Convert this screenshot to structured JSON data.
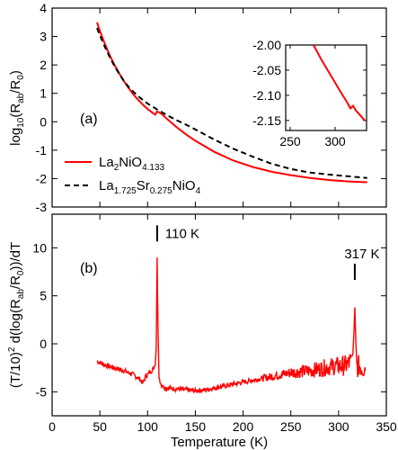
{
  "chart_data": [
    {
      "type": "line",
      "panel_label": "(a)",
      "ylabel": "log10(Rab/R0)",
      "ylim": [
        -3,
        4
      ],
      "yticks": [
        -3,
        -2,
        -1,
        0,
        1,
        2,
        3,
        4
      ],
      "xlim": [
        0,
        350
      ],
      "series": [
        {
          "name": "La2NiO4.133",
          "color": "#ff0000",
          "style": "solid",
          "x": [
            47,
            50,
            55,
            60,
            65,
            70,
            75,
            80,
            85,
            90,
            95,
            100,
            105,
            108,
            110,
            112,
            115,
            120,
            130,
            140,
            150,
            170,
            190,
            210,
            230,
            250,
            270,
            290,
            310,
            330
          ],
          "y": [
            3.5,
            3.2,
            2.76,
            2.36,
            2.02,
            1.72,
            1.44,
            1.19,
            0.97,
            0.77,
            0.6,
            0.45,
            0.32,
            0.25,
            0.36,
            0.33,
            0.27,
            0.11,
            -0.18,
            -0.44,
            -0.67,
            -1.06,
            -1.37,
            -1.59,
            -1.76,
            -1.88,
            -1.98,
            -2.05,
            -2.1,
            -2.13
          ]
        },
        {
          "name": "La1.725Sr0.275NiO4",
          "color": "#000000",
          "style": "dashed",
          "x": [
            47,
            50,
            55,
            60,
            65,
            70,
            75,
            80,
            85,
            90,
            100,
            110,
            120,
            130,
            140,
            150,
            170,
            190,
            210,
            230,
            250,
            270,
            290,
            310,
            330
          ],
          "y": [
            3.3,
            3.05,
            2.65,
            2.3,
            1.98,
            1.7,
            1.45,
            1.23,
            1.06,
            0.9,
            0.64,
            0.43,
            0.24,
            0.06,
            -0.1,
            -0.27,
            -0.63,
            -0.95,
            -1.23,
            -1.48,
            -1.66,
            -1.79,
            -1.86,
            -1.92,
            -1.98
          ]
        }
      ],
      "legend": {
        "placement": "bottom-left",
        "entries": [
          {
            "base": "La",
            "sub1": "2",
            "mid": "NiO",
            "sub2": "4.133",
            "end": ""
          },
          {
            "base": "La",
            "sub1": "1.725",
            "mid": "Sr",
            "sub2": "0.275",
            "end": "NiO",
            "sub3": "4"
          }
        ]
      },
      "inset": {
        "xlim": [
          245,
          335
        ],
        "ylim": [
          -2.17,
          -2.0
        ],
        "xticks": [
          250,
          300
        ],
        "yticks": [
          -2.0,
          -2.05,
          -2.1,
          -2.15
        ],
        "ytick_labels": [
          "-2.00",
          "-2.05",
          "-2.10",
          "-2.15"
        ],
        "series": {
          "color": "#ff0000",
          "x": [
            276,
            285,
            295,
            305,
            313,
            317,
            320,
            323,
            328,
            333
          ],
          "y": [
            -2.0,
            -2.03,
            -2.06,
            -2.09,
            -2.113,
            -2.126,
            -2.121,
            -2.13,
            -2.14,
            -2.15
          ]
        }
      }
    },
    {
      "type": "line",
      "panel_label": "(b)",
      "xlabel": "Temperature (K)",
      "ylabel": "(T/10)2 d(log(Rab/R0))/dT",
      "xlim": [
        0,
        350
      ],
      "xticks": [
        0,
        50,
        100,
        150,
        200,
        250,
        300,
        350
      ],
      "ylim": [
        -7.5,
        13.5
      ],
      "yticks": [
        -5,
        0,
        5,
        10
      ],
      "series": [
        {
          "name": "",
          "color": "#ff0000",
          "x": [
            47,
            55,
            65,
            75,
            85,
            92,
            95,
            98,
            101,
            104,
            106,
            108,
            109,
            110,
            111,
            112,
            114,
            117,
            120,
            130,
            140,
            150,
            160,
            170,
            180,
            190,
            200,
            210,
            220,
            230,
            240,
            250,
            260,
            270,
            280,
            290,
            300,
            306,
            310,
            313,
            315,
            316,
            317,
            318,
            319,
            320,
            322,
            325,
            328
          ],
          "y": [
            -1.8,
            -2.2,
            -2.5,
            -2.8,
            -3.2,
            -3.7,
            -4.1,
            -3.4,
            -3.1,
            -2.8,
            -2.6,
            -2.2,
            -0.5,
            9.0,
            1.0,
            -3.5,
            -4.2,
            -4.5,
            -4.6,
            -4.7,
            -4.8,
            -4.9,
            -4.8,
            -4.6,
            -4.4,
            -4.2,
            -4.0,
            -3.8,
            -3.6,
            -3.4,
            -3.2,
            -3.0,
            -2.9,
            -2.8,
            -2.6,
            -2.4,
            -2.3,
            -2.3,
            -2.1,
            -1.9,
            -1.0,
            1.0,
            3.8,
            0.5,
            -2.0,
            -2.4,
            -2.3,
            -2.5,
            -2.4
          ]
        }
      ],
      "annotations": [
        {
          "text": "110 K",
          "x": 110,
          "y": 11.5
        },
        {
          "text": "317 K",
          "x": 317,
          "y": 7.5
        }
      ]
    }
  ]
}
